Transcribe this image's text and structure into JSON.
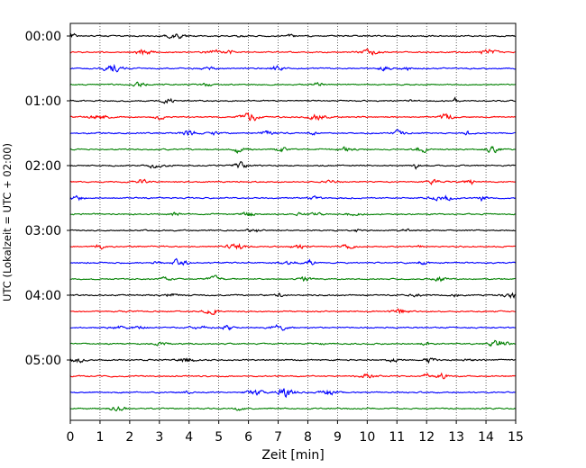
{
  "chart_data": {
    "type": "line",
    "title": "",
    "xlabel": "Zeit  [min]",
    "ylabel": "UTC (Lokalzeit = UTC + 02:00)",
    "xlim": [
      0,
      15
    ],
    "xticks": [
      0,
      1,
      2,
      3,
      4,
      5,
      6,
      7,
      8,
      9,
      10,
      11,
      12,
      13,
      14,
      15
    ],
    "xtick_labels": [
      "0",
      "1",
      "2",
      "3",
      "4",
      "5",
      "6",
      "7",
      "8",
      "9",
      "10",
      "11",
      "12",
      "13",
      "14",
      "15"
    ],
    "ytick_labels": [
      "00:00",
      "01:00",
      "02:00",
      "03:00",
      "04:00",
      "05:00"
    ],
    "grid": "vertical dotted lines at each minute",
    "trace_interval_min": 15,
    "trace_count": 24,
    "trace_colors": [
      "#000000",
      "#ff0000",
      "#0000ff",
      "#008000"
    ],
    "trace_start_times": [
      "00:00",
      "00:15",
      "00:30",
      "00:45",
      "01:00",
      "01:15",
      "01:30",
      "01:45",
      "02:00",
      "02:15",
      "02:30",
      "02:45",
      "03:00",
      "03:15",
      "03:30",
      "03:45",
      "04:00",
      "04:15",
      "04:30",
      "04:45",
      "05:00",
      "05:15",
      "05:30",
      "05:45"
    ]
  }
}
